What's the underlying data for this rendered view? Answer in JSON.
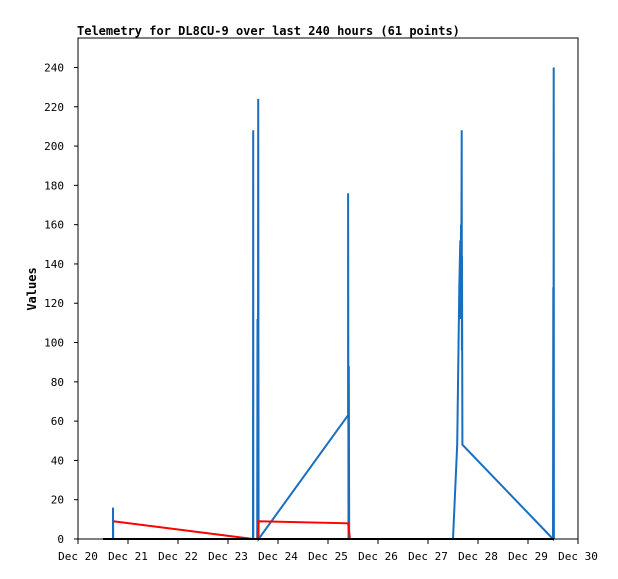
{
  "chart_data": {
    "type": "line",
    "title": "Telemetry for DL8CU-9 over last 240 hours (61 points)",
    "xlabel": "",
    "ylabel": "Values",
    "x_categories": [
      "Dec 20",
      "Dec 21",
      "Dec 22",
      "Dec 23",
      "Dec 24",
      "Dec 25",
      "Dec 26",
      "Dec 27",
      "Dec 28",
      "Dec 29",
      "Dec 30"
    ],
    "xlim": [
      "Dec 20",
      "Dec 30"
    ],
    "ylim": [
      0,
      255
    ],
    "y_ticks": [
      0,
      20,
      40,
      60,
      80,
      100,
      120,
      140,
      160,
      180,
      200,
      220,
      240
    ],
    "grid": false,
    "series": [
      {
        "color": "#1a6ec0",
        "points": [
          {
            "x": "Dec 20 12:00",
            "y": 0
          },
          {
            "x": "Dec 20 16:48",
            "y": 0
          },
          {
            "x": "Dec 20 16:48",
            "y": 16
          },
          {
            "x": "Dec 20 16:55",
            "y": 0
          },
          {
            "x": "Dec 23 12:00",
            "y": 0
          },
          {
            "x": "Dec 23 12:05",
            "y": 208
          },
          {
            "x": "Dec 23 12:10",
            "y": 0
          },
          {
            "x": "Dec 23 14:00",
            "y": 0
          },
          {
            "x": "Dec 23 14:10",
            "y": 112
          },
          {
            "x": "Dec 23 14:20",
            "y": 0
          },
          {
            "x": "Dec 23 14:30",
            "y": 224
          },
          {
            "x": "Dec 23 14:40",
            "y": 0
          },
          {
            "x": "Dec 25 09:38",
            "y": 63
          },
          {
            "x": "Dec 25 09:40",
            "y": 176
          },
          {
            "x": "Dec 25 09:50",
            "y": 0
          },
          {
            "x": "Dec 25 10:00",
            "y": 88
          },
          {
            "x": "Dec 25 10:10",
            "y": 0
          },
          {
            "x": "Dec 27 12:00",
            "y": 0
          },
          {
            "x": "Dec 27 14:00",
            "y": 48
          },
          {
            "x": "Dec 27 15:00",
            "y": 128
          },
          {
            "x": "Dec 27 15:30",
            "y": 152
          },
          {
            "x": "Dec 27 15:40",
            "y": 112
          },
          {
            "x": "Dec 27 15:50",
            "y": 160
          },
          {
            "x": "Dec 27 16:00",
            "y": 136
          },
          {
            "x": "Dec 27 16:10",
            "y": 208
          },
          {
            "x": "Dec 27 16:15",
            "y": 96
          },
          {
            "x": "Dec 27 16:20",
            "y": 144
          },
          {
            "x": "Dec 27 16:30",
            "y": 48
          },
          {
            "x": "Dec 29 12:00",
            "y": 0
          },
          {
            "x": "Dec 29 12:10",
            "y": 128
          },
          {
            "x": "Dec 29 12:15",
            "y": 0
          },
          {
            "x": "Dec 29 12:20",
            "y": 240
          },
          {
            "x": "Dec 29 12:25",
            "y": 0
          }
        ]
      },
      {
        "color": "#ff0000",
        "points": [
          {
            "x": "Dec 20 16:55",
            "y": 9
          },
          {
            "x": "Dec 23 12:00",
            "y": 0
          },
          {
            "x": "Dec 23 14:10",
            "y": 0
          },
          {
            "x": "Dec 23 14:40",
            "y": 9
          },
          {
            "x": "Dec 25 09:40",
            "y": 8
          },
          {
            "x": "Dec 25 10:30",
            "y": 0
          }
        ]
      },
      {
        "color": "#000000",
        "points": [
          {
            "x": "Dec 20 12:00",
            "y": 0
          },
          {
            "x": "Dec 29 12:30",
            "y": 0
          }
        ]
      }
    ]
  }
}
